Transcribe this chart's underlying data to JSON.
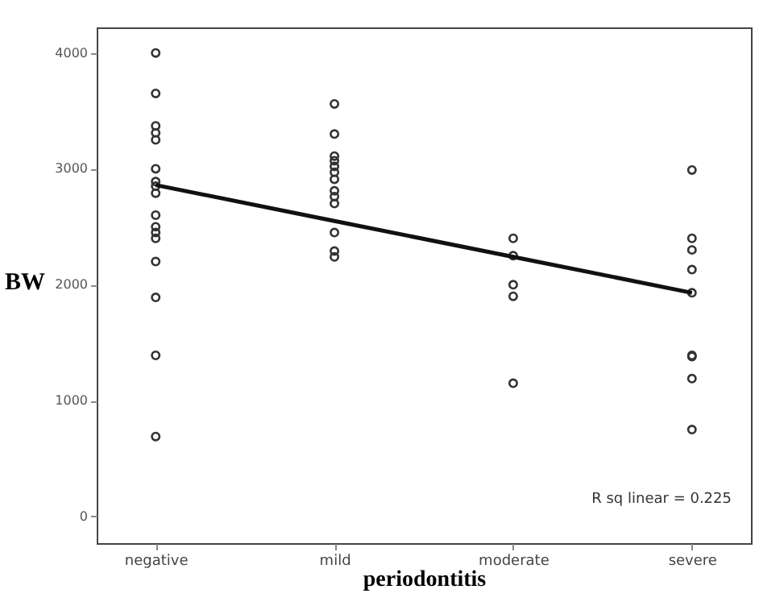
{
  "chart_data": {
    "type": "scatter",
    "xlabel": "periodontitis",
    "ylabel": "BW",
    "categories": [
      "negative",
      "mild",
      "moderate",
      "severe"
    ],
    "ylim": [
      -230,
      4220
    ],
    "yticks": [
      0,
      1000,
      2000,
      3000,
      4000
    ],
    "grid": false,
    "annotations": [
      "R sq linear = 0.225"
    ],
    "series": [
      {
        "marker": "circle",
        "color": "#333333",
        "x": [
          "negative",
          "negative",
          "negative",
          "negative",
          "negative",
          "negative",
          "negative",
          "negative",
          "negative",
          "negative",
          "negative",
          "negative",
          "negative",
          "negative",
          "negative",
          "negative",
          "negative",
          "mild",
          "mild",
          "mild",
          "mild",
          "mild",
          "mild",
          "mild",
          "mild",
          "mild",
          "mild",
          "mild",
          "mild",
          "mild",
          "moderate",
          "moderate",
          "moderate",
          "moderate",
          "moderate",
          "severe",
          "severe",
          "severe",
          "severe",
          "severe",
          "severe",
          "severe",
          "severe",
          "severe"
        ],
        "values": [
          4000,
          3650,
          3370,
          3310,
          3250,
          3000,
          2890,
          2850,
          2790,
          2600,
          2500,
          2450,
          2400,
          2200,
          1890,
          1390,
          690,
          3560,
          3300,
          3110,
          3070,
          3020,
          2970,
          2910,
          2810,
          2760,
          2700,
          2450,
          2290,
          2240,
          2400,
          2250,
          2000,
          1900,
          1150,
          2990,
          2400,
          2300,
          2130,
          1930,
          1390,
          1380,
          1190,
          750
        ]
      },
      {
        "type": "line",
        "marker": "none",
        "color": "#111111",
        "values": [
          2860,
          2550,
          2240,
          1930
        ]
      }
    ]
  }
}
